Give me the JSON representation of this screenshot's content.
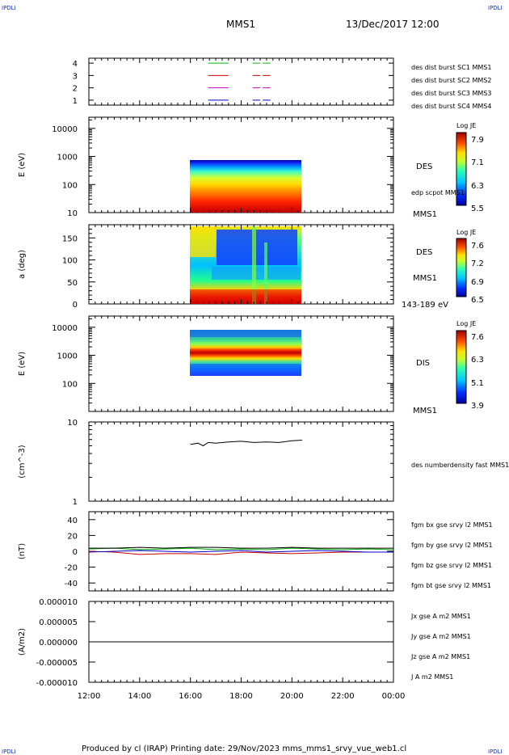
{
  "header": {
    "corner_left": "IPDLI",
    "corner_right": "IPDLI",
    "spacecraft": "MMS1",
    "date_time": "13/Dec/2017 12:00",
    "corner_bottom_left": "IPDLI",
    "corner_bottom_right": "IPDLI"
  },
  "footer": {
    "text": "Produced by cl (IRAP)   Printing date: 29/Nov/2023   mms_mms1_srvy_vue_web1.cl"
  },
  "chart_data": [
    {
      "type": "line",
      "panel": "burst-availability",
      "x_ticks": [
        "12:00",
        "14:00",
        "16:00",
        "18:00",
        "20:00",
        "22:00",
        "00:00"
      ],
      "y_tick_labels": [
        "1",
        "2",
        "3",
        "4"
      ],
      "ylim": [
        0.6,
        4.4
      ],
      "series": [
        {
          "name": "des dist burst SC1 MMS1",
          "color": "#0000cc",
          "level": 1,
          "intervals": [
            [
              16.7,
              17.5
            ],
            [
              18.45,
              18.75
            ],
            [
              18.85,
              19.15
            ]
          ]
        },
        {
          "name": "des dist burst SC2 MMS2",
          "color": "#cc00cc",
          "level": 2,
          "intervals": [
            [
              16.7,
              17.5
            ],
            [
              18.45,
              18.75
            ],
            [
              18.85,
              19.15
            ]
          ]
        },
        {
          "name": "des dist burst SC3 MMS3",
          "color": "#cc0000",
          "level": 3,
          "intervals": [
            [
              16.7,
              17.5
            ],
            [
              18.45,
              18.75
            ],
            [
              18.85,
              19.15
            ]
          ]
        },
        {
          "name": "des dist burst SC4 MMS4",
          "color": "#00bb00",
          "level": 4,
          "intervals": [
            [
              16.7,
              17.5
            ],
            [
              18.45,
              18.75
            ],
            [
              18.85,
              19.15
            ]
          ]
        }
      ]
    },
    {
      "type": "heatmap",
      "panel": "des-energy-spectrogram",
      "ylabel": "E (eV)",
      "y_tick_labels": [
        "10",
        "100",
        "1000",
        "10000"
      ],
      "ylim": [
        10,
        25000
      ],
      "log_y": true,
      "x_range_hours": [
        16.0,
        20.4
      ],
      "y_range": [
        10,
        1000
      ],
      "colorbar": {
        "title": "Log JE",
        "tick_labels": [
          "7.9",
          "7.1",
          "6.3",
          "5.5"
        ],
        "range": [
          5.5,
          7.9
        ]
      },
      "labels": {
        "species": "DES",
        "overlay": "edp scpot MMS1",
        "spacecraft": "MMS1"
      }
    },
    {
      "type": "heatmap",
      "panel": "des-pitch-angle",
      "ylabel": "a (deg)",
      "y_tick_labels": [
        "0",
        "50",
        "100",
        "150"
      ],
      "ylim": [
        0,
        180
      ],
      "x_range_hours": [
        16.0,
        20.4
      ],
      "colorbar": {
        "title": "Log JE",
        "tick_labels": [
          "7.6",
          "7.2",
          "6.9",
          "6.5"
        ],
        "range": [
          6.5,
          7.6
        ]
      },
      "labels": {
        "species": "DES",
        "spacecraft": "MMS1",
        "energy_range": "143-189 eV"
      }
    },
    {
      "type": "heatmap",
      "panel": "dis-energy-spectrogram",
      "ylabel": "E (eV)",
      "y_tick_labels": [
        "100",
        "1000",
        "10000"
      ],
      "ylim": [
        10,
        25000
      ],
      "log_y": true,
      "x_range_hours": [
        16.0,
        20.4
      ],
      "y_range": [
        200,
        10000
      ],
      "colorbar": {
        "title": "Log JE",
        "tick_labels": [
          "7.6",
          "6.3",
          "5.1",
          "3.9"
        ],
        "range": [
          3.9,
          7.6
        ]
      },
      "labels": {
        "species": "DIS",
        "spacecraft": "MMS1"
      }
    },
    {
      "type": "line",
      "panel": "density",
      "ylabel": "(cm^-3)",
      "y_tick_labels": [
        "1",
        "10"
      ],
      "ylim": [
        1,
        10
      ],
      "log_y": true,
      "series": [
        {
          "name": "des numberdensity fast MMS1",
          "color": "#000000",
          "x": [
            16.0,
            16.3,
            16.5,
            16.7,
            17.0,
            17.5,
            18.0,
            18.5,
            19.0,
            19.5,
            20.0,
            20.4
          ],
          "y": [
            5.2,
            5.4,
            5.0,
            5.5,
            5.4,
            5.6,
            5.7,
            5.5,
            5.6,
            5.5,
            5.8,
            5.9
          ]
        }
      ]
    },
    {
      "type": "line",
      "panel": "magnetic-field",
      "ylabel": "(nT)",
      "y_tick_labels": [
        "-40",
        "-20",
        "0",
        "20",
        "40"
      ],
      "ylim": [
        -50,
        50
      ],
      "series": [
        {
          "name": "fgm bx gse srvy l2 MMS1",
          "color": "#cc0000",
          "x": [
            12,
            13,
            14,
            15,
            16,
            17,
            18,
            19,
            20,
            21,
            22,
            23,
            24
          ],
          "y": [
            0,
            -1,
            -4,
            -3,
            -3,
            -4,
            -1,
            -2,
            -3,
            -2,
            -1,
            -1,
            -1
          ]
        },
        {
          "name": "fgm by gse srvy l2 MMS1",
          "color": "#00aa00",
          "x": [
            12,
            13,
            14,
            15,
            16,
            17,
            18,
            19,
            20,
            21,
            22,
            23,
            24
          ],
          "y": [
            3,
            4,
            2,
            3,
            4,
            2,
            3,
            2,
            4,
            3,
            2,
            3,
            2
          ]
        },
        {
          "name": "fgm bz gse srvy l2 MMS1",
          "color": "#0000cc",
          "x": [
            12,
            13,
            14,
            15,
            16,
            17,
            18,
            19,
            20,
            21,
            22,
            23,
            24
          ],
          "y": [
            -1,
            0,
            1,
            0,
            -1,
            0,
            1,
            -1,
            0,
            1,
            0,
            -1,
            -1
          ]
        },
        {
          "name": "fgm bt gse srvy l2 MMS1",
          "color": "#000000",
          "x": [
            12,
            13,
            14,
            15,
            16,
            17,
            18,
            19,
            20,
            21,
            22,
            23,
            24
          ],
          "y": [
            4,
            4,
            5,
            4,
            5,
            5,
            4,
            4,
            5,
            4,
            4,
            4,
            4
          ]
        }
      ]
    },
    {
      "type": "line",
      "panel": "current-density",
      "ylabel": "(A/m2)",
      "y_tick_labels": [
        "-0.000010",
        "-0.000005",
        "0.000000",
        "0.000005",
        "0.000010"
      ],
      "ylim": [
        -1e-05,
        1e-05
      ],
      "series": [
        {
          "name": "Jx gse A m2 MMS1",
          "color": "#cc0000",
          "x": [
            12,
            24
          ],
          "y": [
            0,
            0
          ]
        },
        {
          "name": "Jy gse A m2 MMS1",
          "color": "#66aa00",
          "x": [
            12,
            24
          ],
          "y": [
            0,
            0
          ]
        },
        {
          "name": "Jz gse A m2 MMS1",
          "color": "#0000cc",
          "x": [
            12,
            24
          ],
          "y": [
            0,
            0
          ]
        },
        {
          "name": "J A m2 MMS1",
          "color": "#000000",
          "x": [
            12,
            24
          ],
          "y": [
            0,
            0
          ]
        }
      ]
    }
  ]
}
